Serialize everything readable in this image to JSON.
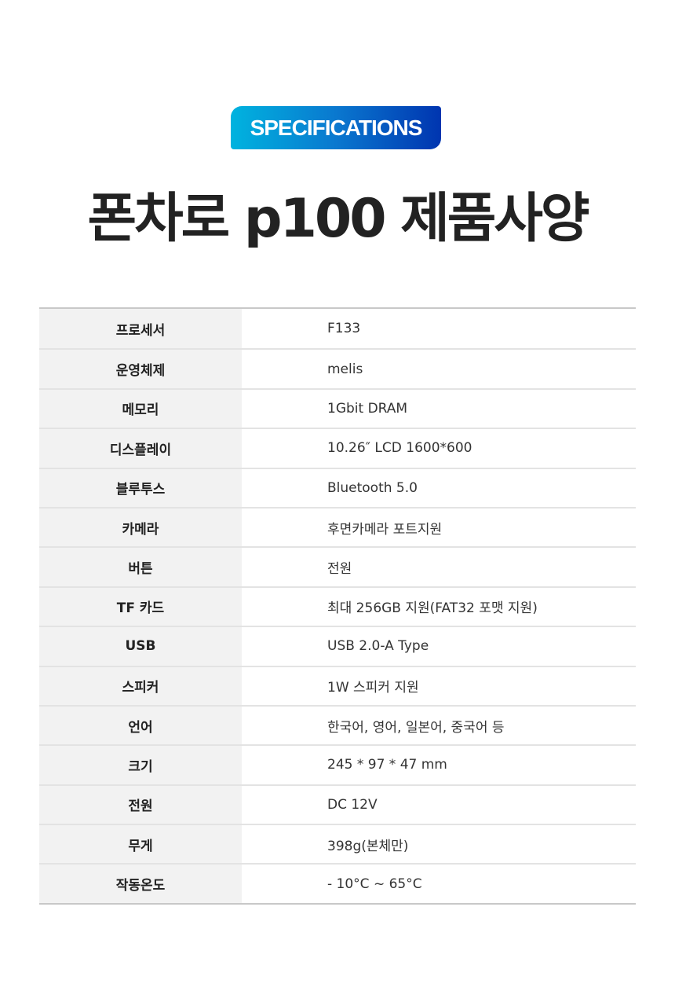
{
  "badge": "SPECIFICATIONS",
  "title": "폰차로 p100 제품사양",
  "specs": [
    {
      "label": "프로세서",
      "value": "F133"
    },
    {
      "label": "운영체제",
      "value": "melis"
    },
    {
      "label": "메모리",
      "value": "1Gbit DRAM"
    },
    {
      "label": "디스플레이",
      "value": "10.26″ LCD 1600*600"
    },
    {
      "label": "블루투스",
      "value": "Bluetooth 5.0"
    },
    {
      "label": "카메라",
      "value": "후면카메라 포트지원"
    },
    {
      "label": "버튼",
      "value": "전원"
    },
    {
      "label": "TF 카드",
      "value": "최대 256GB 지원(FAT32 포맷 지원)"
    },
    {
      "label": "USB",
      "value": "USB 2.0-A Type"
    },
    {
      "label": "스피커",
      "value": "1W 스피커 지원"
    },
    {
      "label": "언어",
      "value": "한국어, 영어, 일본어, 중국어 등"
    },
    {
      "label": "크기",
      "value": "245 * 97 * 47 mm"
    },
    {
      "label": "전원",
      "value": "DC 12V"
    },
    {
      "label": "무게",
      "value": "398g(본체만)"
    },
    {
      "label": "작동온도",
      "value": "- 10°C  ~ 65°C"
    }
  ]
}
